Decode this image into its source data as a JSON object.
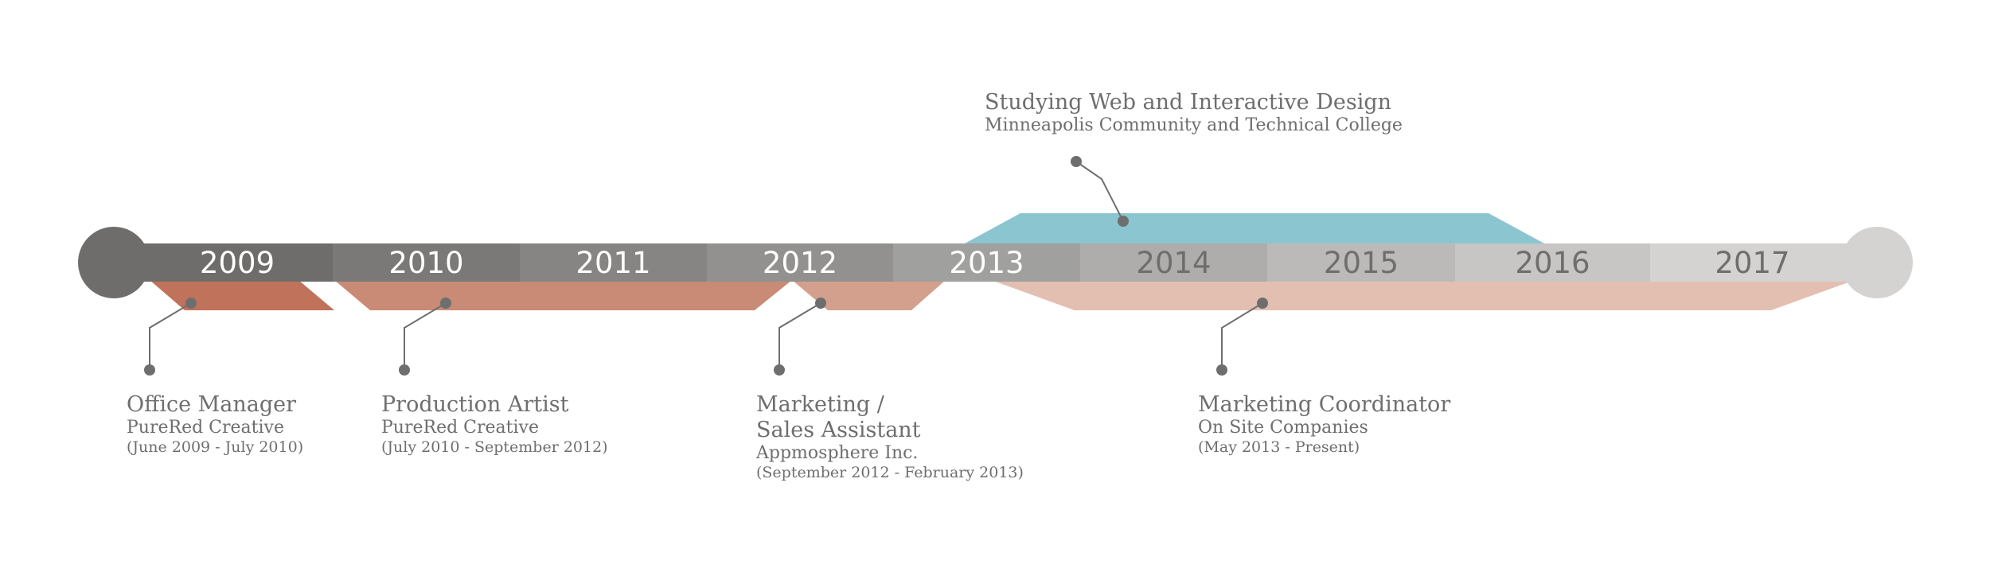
{
  "timeline": {
    "years": [
      {
        "label": "2009",
        "fill": "#6e6d6b",
        "text_color": "#ffffff"
      },
      {
        "label": "2010",
        "fill": "#7a7977",
        "text_color": "#ffffff"
      },
      {
        "label": "2011",
        "fill": "#868583",
        "text_color": "#ffffff"
      },
      {
        "label": "2012",
        "fill": "#92918f",
        "text_color": "#ffffff"
      },
      {
        "label": "2013",
        "fill": "#a0a09e",
        "text_color": "#ffffff"
      },
      {
        "label": "2014",
        "fill": "#aeadab",
        "text_color": "#6e6e6e"
      },
      {
        "label": "2015",
        "fill": "#bbbab8",
        "text_color": "#6e6e6e"
      },
      {
        "label": "2016",
        "fill": "#c7c6c4",
        "text_color": "#6e6e6e"
      },
      {
        "label": "2017",
        "fill": "#d4d3d1",
        "text_color": "#6e6e6e"
      }
    ],
    "colors": {
      "start_cap": "#6e6d6b",
      "end_cap": "#d4d3d1",
      "job1": "#c0735a",
      "job2": "#c98a76",
      "job3": "#d3a08d",
      "job4": "#e3bfb2",
      "education": "#8bc5cf",
      "connector": "#6e6e6e"
    }
  },
  "entries": {
    "education": {
      "title": "Studying Web and Interactive Design",
      "org": "Minneapolis Community and Technical College"
    },
    "job1": {
      "title": "Office Manager",
      "org": "PureRed Creative",
      "dates": "(June 2009 - July 2010)"
    },
    "job2": {
      "title": "Production Artist",
      "org": "PureRed Creative",
      "dates": "(July 2010 - September 2012)"
    },
    "job3": {
      "title_line1": "Marketing /",
      "title_line2": "Sales Assistant",
      "org": "Appmosphere Inc.",
      "dates": "(September 2012 - February 2013)"
    },
    "job4": {
      "title": "Marketing Coordinator",
      "org": "On Site Companies",
      "dates": "(May 2013 - Present)"
    }
  }
}
